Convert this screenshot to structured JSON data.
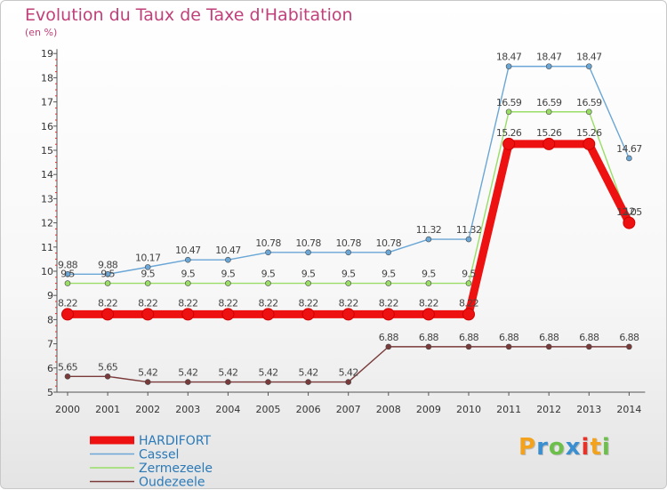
{
  "header": {
    "title": "Evolution du Taux de Taxe d'Habitation",
    "unit": "(en %)"
  },
  "logo": {
    "text": "Proxiti"
  },
  "chart_data": {
    "type": "line",
    "title": "Evolution du Taux de Taxe d'Habitation",
    "ylabel": "(en %)",
    "xlabel": "",
    "x": [
      "2000",
      "2001",
      "2002",
      "2003",
      "2004",
      "2005",
      "2006",
      "2007",
      "2008",
      "2009",
      "2010",
      "2011",
      "2012",
      "2013",
      "2014"
    ],
    "yticks": [
      5,
      6,
      7,
      8,
      9,
      10,
      11,
      12,
      13,
      14,
      15,
      16,
      17,
      18,
      19
    ],
    "ylim": [
      5,
      19
    ],
    "grid": false,
    "legend_position": "bottom-left",
    "series": [
      {
        "name": "HARDIFORT",
        "color": "#ee1111",
        "values": [
          8.22,
          8.22,
          8.22,
          8.22,
          8.22,
          8.22,
          8.22,
          8.22,
          8.22,
          8.22,
          8.22,
          15.26,
          15.26,
          15.26,
          12.0
        ],
        "labels": [
          "8.22",
          "8.22",
          "8.22",
          "8.22",
          "8.22",
          "8.22",
          "8.22",
          "8.22",
          "8.22",
          "8.22",
          "8.22",
          "15.26",
          "15.26",
          "15.26",
          "12"
        ]
      },
      {
        "name": "Cassel",
        "color": "#6aa6d6",
        "values": [
          9.88,
          9.88,
          10.17,
          10.47,
          10.47,
          10.78,
          10.78,
          10.78,
          10.78,
          11.32,
          11.32,
          18.47,
          18.47,
          18.47,
          14.67
        ],
        "labels": [
          "9.88",
          "9.88",
          "10.17",
          "10.47",
          "10.47",
          "10.78",
          "10.78",
          "10.78",
          "10.78",
          "11.32",
          "11.32",
          "18.47",
          "18.47",
          "18.47",
          "14.67"
        ]
      },
      {
        "name": "Zermezeele",
        "color": "#99dd66",
        "values": [
          9.5,
          9.5,
          9.5,
          9.5,
          9.5,
          9.5,
          9.5,
          9.5,
          9.5,
          9.5,
          9.5,
          16.59,
          16.59,
          16.59,
          12.05
        ],
        "labels": [
          "9.5",
          "9.5",
          "9.5",
          "9.5",
          "9.5",
          "9.5",
          "9.5",
          "9.5",
          "9.5",
          "9.5",
          "9.5",
          "16.59",
          "16.59",
          "16.59",
          "12.05"
        ]
      },
      {
        "name": "Oudezeele",
        "color": "#7a3a3a",
        "values": [
          5.65,
          5.65,
          5.42,
          5.42,
          5.42,
          5.42,
          5.42,
          5.42,
          6.88,
          6.88,
          6.88,
          6.88,
          6.88,
          6.88,
          6.88
        ],
        "labels": [
          "5.65",
          "5.65",
          "5.42",
          "5.42",
          "5.42",
          "5.42",
          "5.42",
          "5.42",
          "6.88",
          "6.88",
          "6.88",
          "6.88",
          "6.88",
          "6.88",
          "6.88"
        ]
      }
    ]
  }
}
